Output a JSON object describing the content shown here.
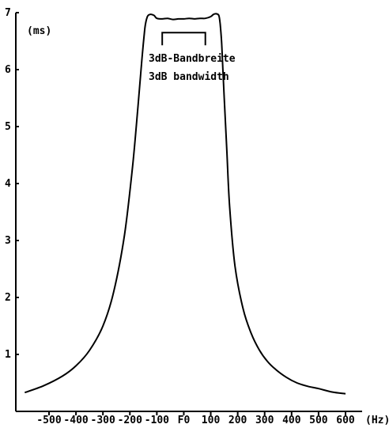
{
  "chart_data": {
    "type": "line",
    "title": "",
    "xlabel": "(Hz)",
    "ylabel": "(ms)",
    "x_ticks": [
      "-500",
      "-400",
      "-300",
      "-200",
      "-100",
      "F0",
      "100",
      "200",
      "300",
      "400",
      "500",
      "600"
    ],
    "x_tick_values": [
      -500,
      -400,
      -300,
      -200,
      -100,
      0,
      100,
      200,
      300,
      400,
      500,
      600
    ],
    "y_ticks": [
      "1",
      "2",
      "3",
      "4",
      "5",
      "6",
      "7"
    ],
    "y_tick_values": [
      1,
      2,
      3,
      4,
      5,
      6,
      7
    ],
    "xlim": [
      -590,
      600
    ],
    "ylim": [
      0,
      7
    ],
    "grid": false,
    "series": [
      {
        "x": [
          -590,
          -520,
          -450,
          -400,
          -350,
          -300,
          -260,
          -220,
          -190,
          -170,
          -155,
          -145,
          -140,
          -135,
          -130,
          -120,
          -110,
          -100,
          -80,
          -60,
          -40,
          -20,
          0,
          20,
          40,
          60,
          80,
          100,
          110,
          120,
          130,
          135,
          140,
          145,
          150,
          160,
          170,
          190,
          220,
          250,
          280,
          310,
          340,
          380,
          420,
          460,
          500,
          550,
          600
        ],
        "y": [
          0.33,
          0.45,
          0.62,
          0.8,
          1.07,
          1.5,
          2.1,
          3.1,
          4.3,
          5.35,
          6.2,
          6.7,
          6.85,
          6.93,
          6.96,
          6.97,
          6.95,
          6.9,
          6.89,
          6.9,
          6.88,
          6.89,
          6.89,
          6.9,
          6.89,
          6.9,
          6.9,
          6.93,
          6.97,
          6.98,
          6.95,
          6.8,
          6.5,
          6.0,
          5.5,
          4.55,
          3.6,
          2.55,
          1.8,
          1.37,
          1.08,
          0.88,
          0.74,
          0.6,
          0.5,
          0.44,
          0.4,
          0.34,
          0.31
        ]
      }
    ],
    "annotation": {
      "line1": "3dB-Bandbreite",
      "line2": "3dB bandwidth",
      "bracket_x": [
        -80,
        80
      ],
      "bracket_y": 6.65
    }
  }
}
